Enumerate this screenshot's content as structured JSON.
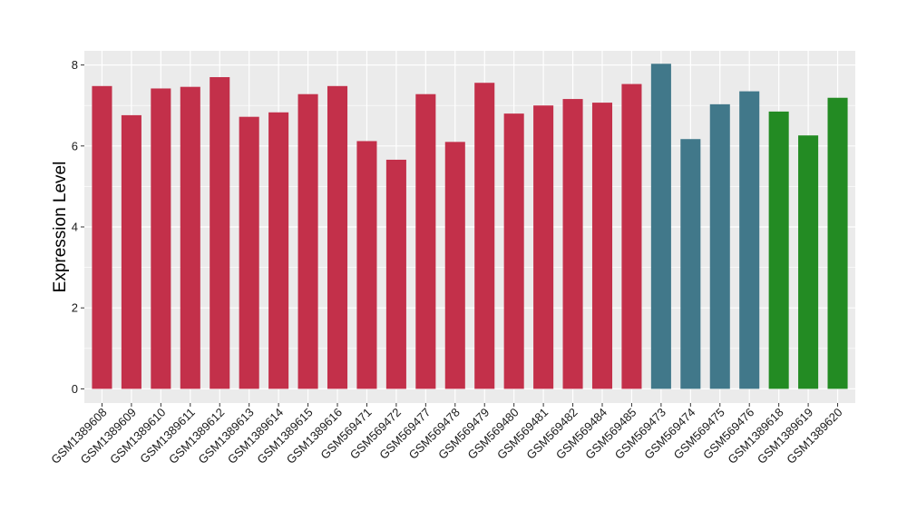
{
  "chart_data": {
    "type": "bar",
    "title": "",
    "xlabel": "",
    "ylabel": "Expression Level",
    "ylim": [
      -0.35,
      8.35
    ],
    "y_ticks": [
      0,
      2,
      4,
      6,
      8
    ],
    "grid": true,
    "legend": "none",
    "categories": [
      "GSM1389608",
      "GSM1389609",
      "GSM1389610",
      "GSM1389611",
      "GSM1389612",
      "GSM1389613",
      "GSM1389614",
      "GSM1389615",
      "GSM1389616",
      "GSM569471",
      "GSM569472",
      "GSM569477",
      "GSM569478",
      "GSM569479",
      "GSM569480",
      "GSM569481",
      "GSM569482",
      "GSM569484",
      "GSM569485",
      "GSM569473",
      "GSM569474",
      "GSM569475",
      "GSM569476",
      "GSM1389618",
      "GSM1389619",
      "GSM1389620"
    ],
    "values": [
      7.48,
      6.76,
      7.42,
      7.46,
      7.7,
      6.72,
      6.83,
      7.28,
      7.48,
      6.12,
      5.66,
      7.28,
      6.1,
      7.56,
      6.8,
      7.0,
      7.16,
      7.07,
      7.53,
      8.03,
      6.17,
      7.03,
      7.35,
      6.85,
      6.26,
      7.19
    ],
    "bar_colors": [
      "#C3304A",
      "#C3304A",
      "#C3304A",
      "#C3304A",
      "#C3304A",
      "#C3304A",
      "#C3304A",
      "#C3304A",
      "#C3304A",
      "#C3304A",
      "#C3304A",
      "#C3304A",
      "#C3304A",
      "#C3304A",
      "#C3304A",
      "#C3304A",
      "#C3304A",
      "#C3304A",
      "#C3304A",
      "#41788A",
      "#41788A",
      "#41788A",
      "#41788A",
      "#238B23",
      "#238B23",
      "#238B23"
    ],
    "panel_background": "#EBEBEB",
    "grid_color": "#FFFFFF"
  }
}
